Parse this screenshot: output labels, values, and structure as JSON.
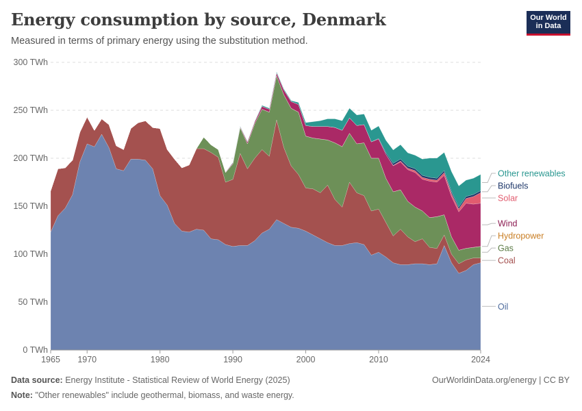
{
  "header": {
    "title": "Energy consumption by source, Denmark",
    "subtitle": "Measured in terms of primary energy using the substitution method.",
    "logo_line1": "Our World",
    "logo_line2": "in Data"
  },
  "footer": {
    "source_label": "Data source:",
    "source_text": "Energy Institute - Statistical Review of World Energy (2025)",
    "note_label": "Note:",
    "note_text": "\"Other renewables\" include geothermal, biomass, and waste energy.",
    "credit": "OurWorldinData.org/energy | CC BY"
  },
  "chart_data": {
    "type": "area",
    "stacked": true,
    "unit": "TWh",
    "ylim": [
      0,
      300
    ],
    "yticks": [
      0,
      50,
      100,
      150,
      200,
      250,
      300
    ],
    "ytick_labels": [
      "0 TWh",
      "50 TWh",
      "100 TWh",
      "150 TWh",
      "200 TWh",
      "250 TWh",
      "300 TWh"
    ],
    "xlim": [
      1965,
      2024
    ],
    "xticks": [
      1965,
      1970,
      1980,
      1990,
      2000,
      2010,
      2024
    ],
    "grid": "horizontal dashed",
    "legend_position": "right, labels at series ends",
    "x": [
      1965,
      1966,
      1967,
      1968,
      1969,
      1970,
      1971,
      1972,
      1973,
      1974,
      1975,
      1976,
      1977,
      1978,
      1979,
      1980,
      1981,
      1982,
      1983,
      1984,
      1985,
      1986,
      1987,
      1988,
      1989,
      1990,
      1991,
      1992,
      1993,
      1994,
      1995,
      1996,
      1997,
      1998,
      1999,
      2000,
      2001,
      2002,
      2003,
      2004,
      2005,
      2006,
      2007,
      2008,
      2009,
      2010,
      2011,
      2012,
      2013,
      2014,
      2015,
      2016,
      2017,
      2018,
      2019,
      2020,
      2021,
      2022,
      2023,
      2024
    ],
    "series": [
      {
        "name": "Oil",
        "color": "#6d83b0",
        "values": [
          123,
          140,
          148,
          162,
          196,
          215,
          212,
          225,
          211,
          189,
          187,
          199,
          199,
          198,
          189,
          161,
          151,
          132,
          124,
          123,
          126,
          125,
          116,
          115,
          110,
          108,
          109,
          109,
          114,
          122,
          126,
          136,
          132,
          128,
          127,
          124,
          120,
          116,
          112,
          109,
          109,
          111,
          112,
          110,
          99,
          102,
          97,
          91,
          89,
          89,
          90,
          90,
          89,
          90,
          109,
          91,
          80,
          83,
          89,
          91
        ]
      },
      {
        "name": "Coal",
        "color": "#a4514f",
        "values": [
          43,
          49,
          42,
          36,
          31,
          28,
          17,
          16,
          24,
          24,
          22,
          32,
          38,
          41,
          43,
          70,
          58,
          67,
          66,
          70,
          84,
          85,
          90,
          86,
          65,
          70,
          96,
          80,
          86,
          87,
          76,
          104,
          79,
          64,
          56,
          45,
          48,
          48,
          60,
          48,
          40,
          64,
          52,
          51,
          46,
          45,
          36,
          28,
          37,
          29,
          23,
          26,
          18,
          16,
          11,
          9,
          10,
          11,
          7,
          5
        ]
      },
      {
        "name": "Gas",
        "color": "#6d9058",
        "values": [
          0,
          0,
          0,
          0,
          0,
          0,
          0,
          0,
          0,
          0,
          0,
          0,
          0,
          0,
          0,
          0,
          0,
          0,
          0,
          0,
          0,
          12,
          8,
          8,
          10,
          16,
          27,
          26,
          36,
          42,
          46,
          46,
          55,
          60,
          65,
          54,
          53,
          56,
          47,
          59,
          63,
          51,
          51,
          55,
          55,
          53,
          46,
          46,
          41,
          37,
          36,
          29,
          31,
          33,
          21,
          18,
          14,
          12,
          11,
          12
        ]
      },
      {
        "name": "Hydropower",
        "color": "#c97e24",
        "values": [
          0,
          0,
          0,
          0,
          0,
          0,
          0,
          0,
          0,
          0,
          0,
          0,
          0,
          0,
          0,
          0,
          0,
          0,
          0,
          0,
          0,
          0,
          0,
          0,
          0,
          0.1,
          0.1,
          0.1,
          0.1,
          0.1,
          0.1,
          0.1,
          0.1,
          0.1,
          0.1,
          0.1,
          0.1,
          0.1,
          0.1,
          0.1,
          0.1,
          0.1,
          0.1,
          0.1,
          0.1,
          0.1,
          0.1,
          0.1,
          0.1,
          0.1,
          0.1,
          0.1,
          0.1,
          0.1,
          0.1,
          0.1,
          0.1,
          0.1,
          0.1,
          0.1
        ]
      },
      {
        "name": "Wind",
        "color": "#aa2966",
        "values": [
          0,
          0,
          0,
          0,
          0,
          0,
          0,
          0,
          0,
          0,
          0,
          0,
          0,
          0,
          0,
          0,
          0,
          0,
          0,
          0,
          0,
          0,
          0,
          0,
          0.5,
          1,
          1,
          2,
          2,
          3,
          3,
          3,
          5,
          7,
          8,
          11,
          12,
          13,
          14,
          16,
          17,
          16,
          19,
          19,
          17,
          20,
          25,
          27,
          29,
          33,
          36,
          33,
          38,
          36,
          41,
          42,
          40,
          47,
          45,
          45
        ]
      },
      {
        "name": "Solar",
        "color": "#e15c6f",
        "values": [
          0,
          0,
          0,
          0,
          0,
          0,
          0,
          0,
          0,
          0,
          0,
          0,
          0,
          0,
          0,
          0,
          0,
          0,
          0,
          0,
          0,
          0,
          0,
          0,
          0,
          0,
          0,
          0,
          0,
          0,
          0,
          0,
          0,
          0,
          0,
          0,
          0,
          0,
          0,
          0,
          0,
          0,
          0,
          0,
          0,
          0,
          0.1,
          0.5,
          1,
          1.5,
          2,
          2,
          2,
          2,
          3,
          3,
          3,
          5,
          8,
          11
        ]
      },
      {
        "name": "Biofuels",
        "color": "#1e3769",
        "values": [
          0,
          0,
          0,
          0,
          0,
          0,
          0,
          0,
          0,
          0,
          0,
          0,
          0,
          0,
          0,
          0,
          0,
          0,
          0,
          0,
          0,
          0,
          0,
          0,
          0,
          0,
          0,
          0,
          0,
          0,
          0,
          0,
          0,
          0,
          0,
          0,
          0,
          0,
          0,
          0,
          0,
          0,
          0,
          0,
          0,
          0.5,
          1.5,
          2,
          2,
          2,
          2,
          2,
          2,
          2,
          2,
          2,
          2,
          2,
          2,
          2
        ]
      },
      {
        "name": "Other renewables",
        "color": "#2a9790",
        "values": [
          0,
          0,
          0,
          0,
          0,
          0,
          0,
          0,
          0,
          0,
          0,
          0,
          0,
          0,
          0,
          0,
          0,
          0,
          0,
          0,
          0,
          0,
          0,
          0,
          0,
          0.5,
          0.5,
          0.5,
          0.5,
          1,
          1,
          1,
          1,
          1,
          2,
          3,
          5,
          6,
          8,
          9,
          10,
          10,
          11,
          11,
          12,
          13,
          13,
          14,
          15,
          14,
          14,
          17,
          20,
          21,
          19,
          21,
          22,
          17,
          17,
          17
        ]
      }
    ]
  }
}
